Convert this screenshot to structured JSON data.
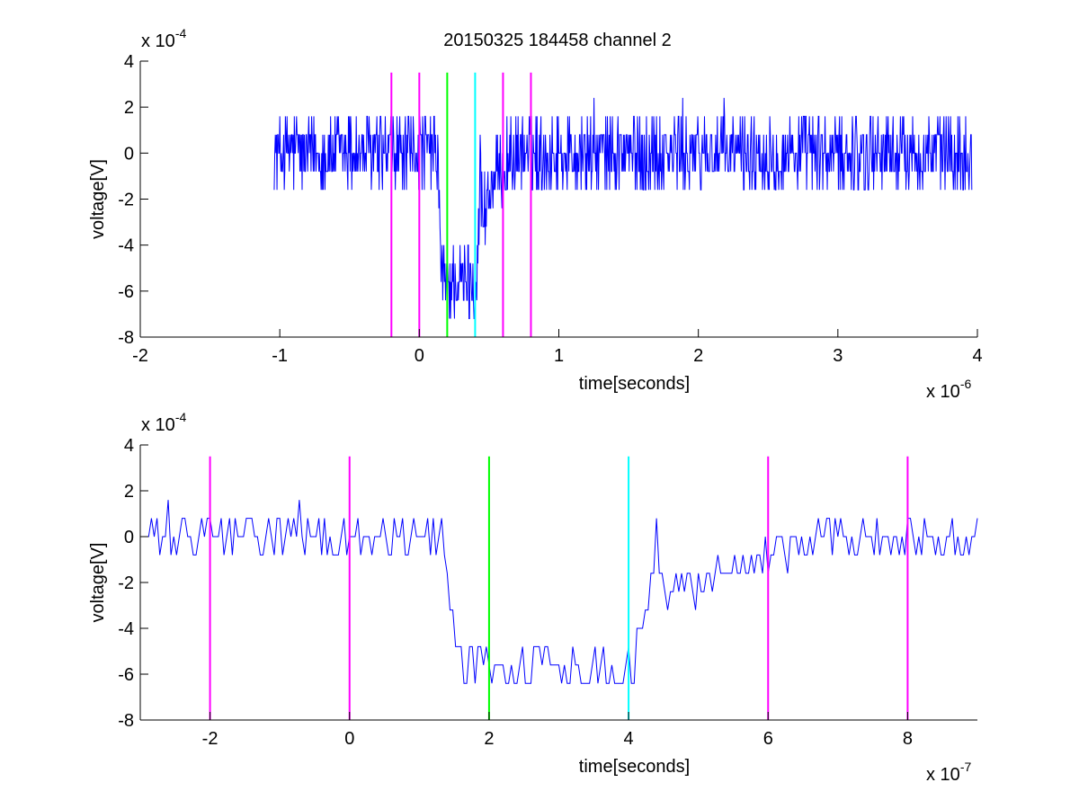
{
  "figure_title": "20150325 184458 channel 2",
  "chart_data": [
    {
      "type": "line",
      "title": "20150325 184458 channel 2",
      "xlabel": "time[seconds]",
      "ylabel": "voltage[V]",
      "x_multiplier": "x 10",
      "x_exponent": "-6",
      "y_multiplier": "x 10",
      "y_exponent": "-4",
      "xlim": [
        -2e-06,
        4e-06
      ],
      "ylim": [
        -0.0008,
        0.0004
      ],
      "xticks": [
        -2e-06,
        -1e-06,
        0,
        1e-06,
        2e-06,
        3e-06,
        4e-06
      ],
      "xtick_labels": [
        "-2",
        "-1",
        "0",
        "1",
        "2",
        "3",
        "4"
      ],
      "yticks": [
        -0.0008,
        -0.0006,
        -0.0004,
        -0.0002,
        0,
        0.0002,
        0.0004
      ],
      "ytick_labels": [
        "-8",
        "-6",
        "-4",
        "-2",
        "0",
        "2",
        "4"
      ],
      "grid": false,
      "signal": {
        "color": "#0000ff",
        "x_start": -1.04e-06,
        "x_end": 3.96e-06,
        "noise_amplitude": 0.00016,
        "pulse": {
          "start": 1.3e-07,
          "end": 4.4e-07,
          "depth": -0.00056
        }
      },
      "markers": [
        {
          "x": -2e-07,
          "color": "#ff00ff"
        },
        {
          "x": 0,
          "color": "#ff00ff"
        },
        {
          "x": 2e-07,
          "color": "#00ff00"
        },
        {
          "x": 4e-07,
          "color": "#00ffff"
        },
        {
          "x": 6e-07,
          "color": "#ff00ff"
        },
        {
          "x": 8e-07,
          "color": "#ff00ff"
        }
      ],
      "marker_ylim": [
        -0.0008,
        0.00035
      ]
    },
    {
      "type": "line",
      "title": "",
      "xlabel": "time[seconds]",
      "ylabel": "voltage[V]",
      "x_multiplier": "x 10",
      "x_exponent": "-7",
      "y_multiplier": "x 10",
      "y_exponent": "-4",
      "xlim": [
        -3e-07,
        9e-07
      ],
      "ylim": [
        -0.0008,
        0.0004
      ],
      "xticks": [
        -2e-07,
        0,
        2e-07,
        4e-07,
        6e-07,
        8e-07
      ],
      "xtick_labels": [
        "-2",
        "0",
        "2",
        "4",
        "6",
        "8"
      ],
      "yticks": [
        -0.0008,
        -0.0006,
        -0.0004,
        -0.0002,
        0,
        0.0002,
        0.0004
      ],
      "ytick_labels": [
        "-8",
        "-6",
        "-4",
        "-2",
        "0",
        "2",
        "4"
      ],
      "grid": false,
      "signal": {
        "color": "#0000ff",
        "x_start": -3e-07,
        "x_end": 9e-07,
        "noise_amplitude": 0.0001,
        "pulse": {
          "start": 1.3e-07,
          "end": 4.4e-07,
          "depth": -0.00056
        }
      },
      "markers": [
        {
          "x": -2e-07,
          "color": "#ff00ff"
        },
        {
          "x": 0,
          "color": "#ff00ff"
        },
        {
          "x": 2e-07,
          "color": "#00ff00"
        },
        {
          "x": 4e-07,
          "color": "#00ffff"
        },
        {
          "x": 6e-07,
          "color": "#ff00ff"
        },
        {
          "x": 8e-07,
          "color": "#ff00ff"
        }
      ],
      "marker_ylim": [
        -0.0008,
        0.00035
      ]
    }
  ]
}
